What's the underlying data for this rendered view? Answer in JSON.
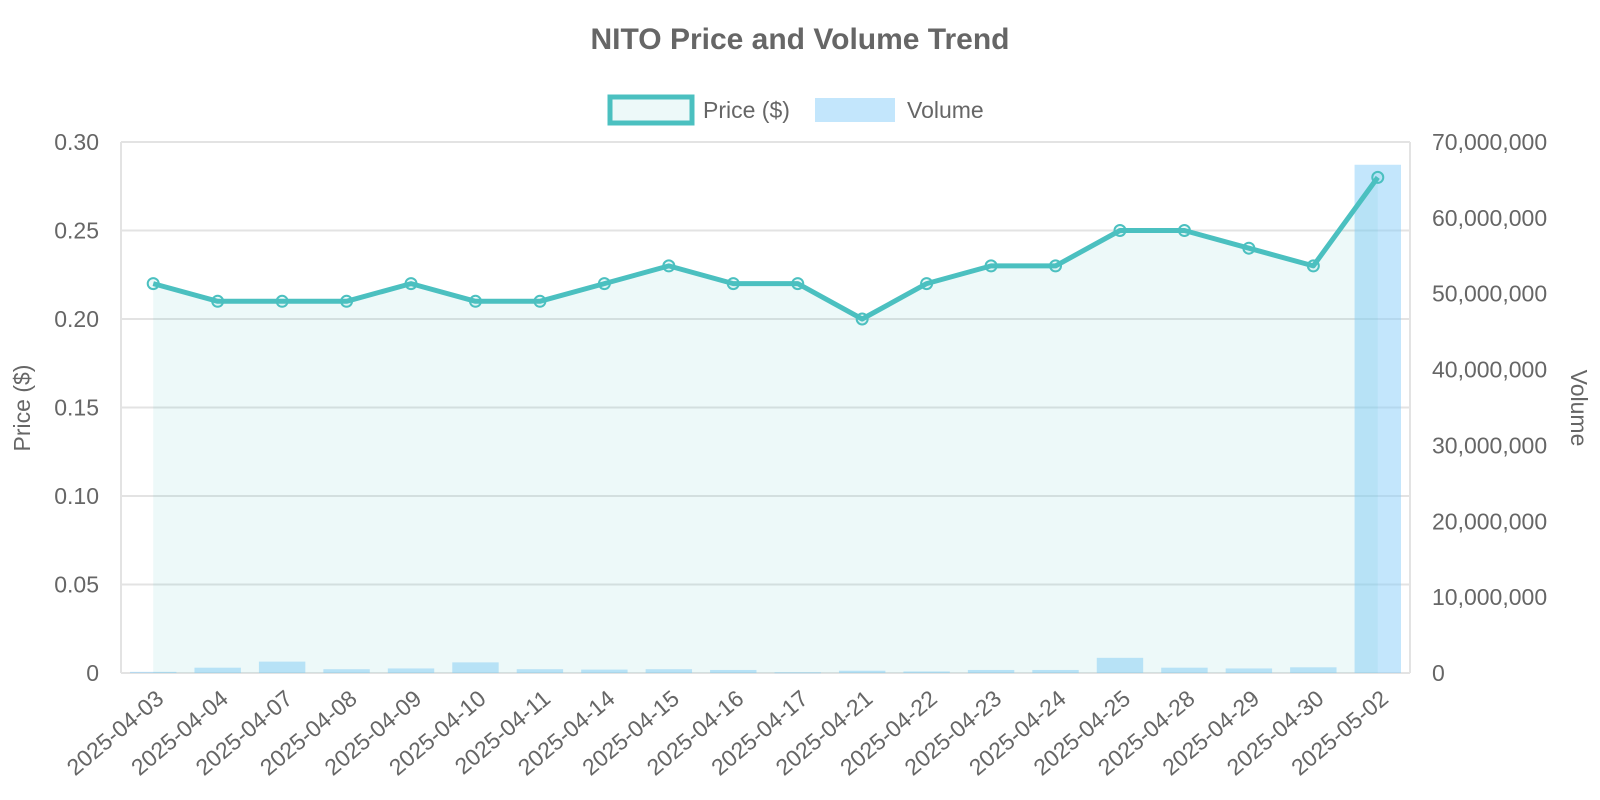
{
  "chart_data": {
    "type": "line",
    "title": "NITO Price and Volume Trend",
    "categories": [
      "2025-04-03",
      "2025-04-04",
      "2025-04-07",
      "2025-04-08",
      "2025-04-09",
      "2025-04-10",
      "2025-04-11",
      "2025-04-14",
      "2025-04-15",
      "2025-04-16",
      "2025-04-17",
      "2025-04-21",
      "2025-04-22",
      "2025-04-23",
      "2025-04-24",
      "2025-04-25",
      "2025-04-28",
      "2025-04-29",
      "2025-04-30",
      "2025-05-02"
    ],
    "series": [
      {
        "name": "Price ($)",
        "type": "line",
        "axis": "left",
        "color": "#4bc0c0",
        "fill": "rgba(75,192,192,0.1)",
        "values": [
          0.22,
          0.21,
          0.21,
          0.21,
          0.22,
          0.21,
          0.21,
          0.22,
          0.23,
          0.22,
          0.22,
          0.2,
          0.22,
          0.23,
          0.23,
          0.25,
          0.25,
          0.24,
          0.23,
          0.28
        ]
      },
      {
        "name": "Volume",
        "type": "bar",
        "axis": "right",
        "color": "rgba(135,206,250,0.5)",
        "values": [
          150000,
          700000,
          1500000,
          500000,
          600000,
          1400000,
          500000,
          450000,
          500000,
          400000,
          100000,
          300000,
          200000,
          400000,
          400000,
          2000000,
          700000,
          600000,
          750000,
          67000000
        ]
      }
    ],
    "y_left": {
      "label": "Price ($)",
      "min": 0,
      "max": 0.3,
      "ticks": [
        0,
        0.05,
        0.1,
        0.15,
        0.2,
        0.25,
        0.3
      ],
      "tick_labels": [
        "0",
        "0.05",
        "0.10",
        "0.15",
        "0.20",
        "0.25",
        "0.30"
      ]
    },
    "y_right": {
      "label": "Volume",
      "min": 0,
      "max": 70000000,
      "ticks": [
        0,
        10000000,
        20000000,
        30000000,
        40000000,
        50000000,
        60000000,
        70000000
      ],
      "tick_labels": [
        "0",
        "10,000,000",
        "20,000,000",
        "30,000,000",
        "40,000,000",
        "50,000,000",
        "60,000,000",
        "70,000,000"
      ]
    },
    "grid": true,
    "legend_position": "top"
  }
}
